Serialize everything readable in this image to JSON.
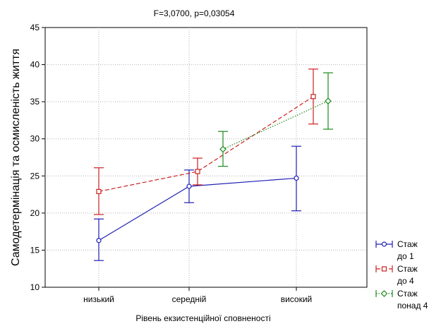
{
  "chart_data": {
    "type": "line",
    "title": "F=3,0700, p=0,03054",
    "xlabel": "Рівень екзистенційної сповненості",
    "ylabel": "Самодетермінація та осмисленість життя",
    "categories": [
      "низький",
      "середній",
      "високий"
    ],
    "ylim": [
      10,
      45
    ],
    "yticks": [
      10,
      15,
      20,
      25,
      30,
      35,
      40,
      45
    ],
    "grid": true,
    "legend_position": "right-bottom",
    "series": [
      {
        "name": [
          "Стаж",
          "до 1"
        ],
        "color": "#1f1fb4",
        "line_style": "solid",
        "marker": "circle",
        "points": [
          {
            "category": "низький",
            "value": 16.3,
            "low": 13.6,
            "high": 19.2
          },
          {
            "category": "середній",
            "value": 23.6,
            "low": 21.4,
            "high": 25.8
          },
          {
            "category": "високий",
            "value": 24.7,
            "low": 20.3,
            "high": 29.0
          }
        ]
      },
      {
        "name": [
          "Стаж",
          "до 4"
        ],
        "color": "#cc2020",
        "line_style": "dashed",
        "marker": "square",
        "points": [
          {
            "category": "низький",
            "value": 22.9,
            "low": 19.8,
            "high": 26.1
          },
          {
            "category": "середній",
            "value": 25.6,
            "low": 23.8,
            "high": 27.4
          },
          {
            "category": "високий",
            "value": 35.7,
            "low": 32.0,
            "high": 39.4
          }
        ]
      },
      {
        "name": [
          "Стаж",
          "понад 4"
        ],
        "color": "#1a8a1a",
        "line_style": "dotted",
        "marker": "diamond",
        "points": [
          {
            "category": "середній",
            "value": 28.6,
            "low": 26.3,
            "high": 31.0
          },
          {
            "category": "високий",
            "value": 35.1,
            "low": 31.3,
            "high": 38.9
          }
        ]
      }
    ]
  }
}
